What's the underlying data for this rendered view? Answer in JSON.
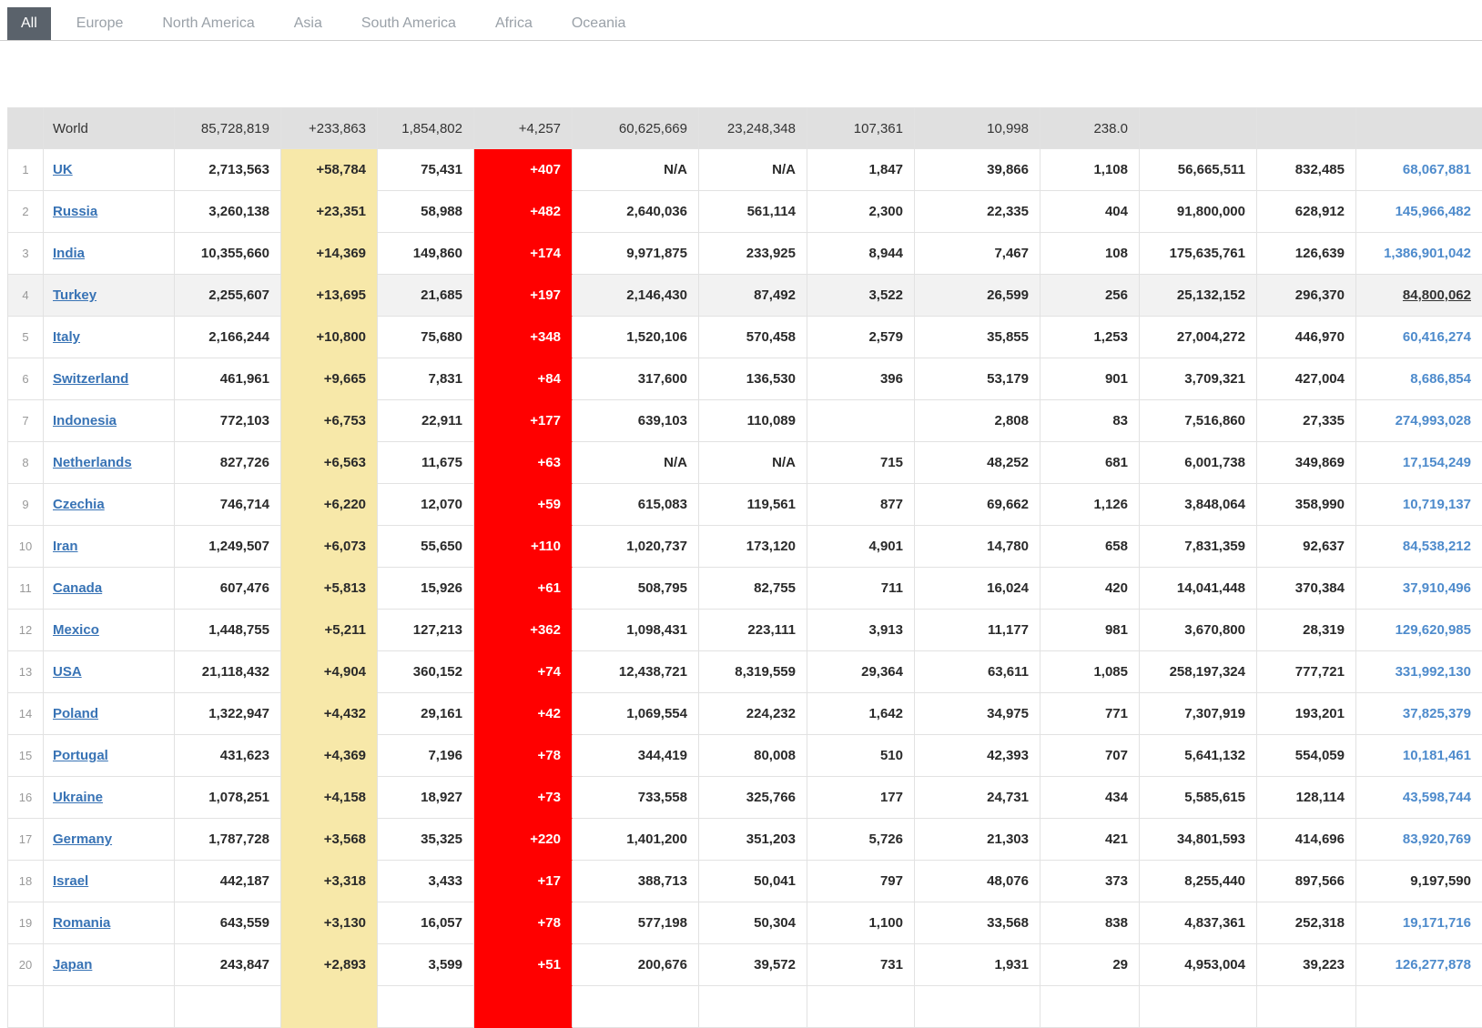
{
  "tabs": [
    {
      "label": "All",
      "active": true
    },
    {
      "label": "Europe",
      "active": false
    },
    {
      "label": "North America",
      "active": false
    },
    {
      "label": "Asia",
      "active": false
    },
    {
      "label": "South America",
      "active": false
    },
    {
      "label": "Africa",
      "active": false
    },
    {
      "label": "Oceania",
      "active": false
    }
  ],
  "colors": {
    "new_cases_highlight": "#F7E8A9",
    "new_deaths_highlight": "#FF0000",
    "country_link_blue": "#3873B5",
    "population_link_blue": "#4E8BCC",
    "active_tab_background": "#5A626B",
    "summary_row_background": "#E0E0E0",
    "highlighted_row_background": "#F2F2F2"
  },
  "summary": {
    "label": "World",
    "total_cases": "85,728,819",
    "new_cases": "+233,863",
    "total_deaths": "1,854,802",
    "new_deaths": "+4,257",
    "total_recovered": "60,625,669",
    "active_cases": "23,248,348",
    "serious_critical": "107,361",
    "cases_per_1m": "10,998",
    "deaths_per_1m": "238.0",
    "total_tests": "",
    "tests_per_1m": "",
    "population": ""
  },
  "rows": [
    {
      "rank": "1",
      "country": "UK",
      "total_cases": "2,713,563",
      "new_cases": "+58,784",
      "total_deaths": "75,431",
      "new_deaths": "+407",
      "total_recovered": "N/A",
      "active_cases": "N/A",
      "serious_critical": "1,847",
      "cases_per_1m": "39,866",
      "deaths_per_1m": "1,108",
      "total_tests": "56,665,511",
      "tests_per_1m": "832,485",
      "population": "68,067,881",
      "population_style": "link",
      "highlighted": false
    },
    {
      "rank": "2",
      "country": "Russia",
      "total_cases": "3,260,138",
      "new_cases": "+23,351",
      "total_deaths": "58,988",
      "new_deaths": "+482",
      "total_recovered": "2,640,036",
      "active_cases": "561,114",
      "serious_critical": "2,300",
      "cases_per_1m": "22,335",
      "deaths_per_1m": "404",
      "total_tests": "91,800,000",
      "tests_per_1m": "628,912",
      "population": "145,966,482",
      "population_style": "link",
      "highlighted": false
    },
    {
      "rank": "3",
      "country": "India",
      "total_cases": "10,355,660",
      "new_cases": "+14,369",
      "total_deaths": "149,860",
      "new_deaths": "+174",
      "total_recovered": "9,971,875",
      "active_cases": "233,925",
      "serious_critical": "8,944",
      "cases_per_1m": "7,467",
      "deaths_per_1m": "108",
      "total_tests": "175,635,761",
      "tests_per_1m": "126,639",
      "population": "1,386,901,042",
      "population_style": "link",
      "highlighted": false
    },
    {
      "rank": "4",
      "country": "Turkey",
      "total_cases": "2,255,607",
      "new_cases": "+13,695",
      "total_deaths": "21,685",
      "new_deaths": "+197",
      "total_recovered": "2,146,430",
      "active_cases": "87,492",
      "serious_critical": "3,522",
      "cases_per_1m": "26,599",
      "deaths_per_1m": "256",
      "total_tests": "25,132,152",
      "tests_per_1m": "296,370",
      "population": "84,800,062",
      "population_style": "hover",
      "highlighted": true
    },
    {
      "rank": "5",
      "country": "Italy",
      "total_cases": "2,166,244",
      "new_cases": "+10,800",
      "total_deaths": "75,680",
      "new_deaths": "+348",
      "total_recovered": "1,520,106",
      "active_cases": "570,458",
      "serious_critical": "2,579",
      "cases_per_1m": "35,855",
      "deaths_per_1m": "1,253",
      "total_tests": "27,004,272",
      "tests_per_1m": "446,970",
      "population": "60,416,274",
      "population_style": "link",
      "highlighted": false
    },
    {
      "rank": "6",
      "country": "Switzerland",
      "total_cases": "461,961",
      "new_cases": "+9,665",
      "total_deaths": "7,831",
      "new_deaths": "+84",
      "total_recovered": "317,600",
      "active_cases": "136,530",
      "serious_critical": "396",
      "cases_per_1m": "53,179",
      "deaths_per_1m": "901",
      "total_tests": "3,709,321",
      "tests_per_1m": "427,004",
      "population": "8,686,854",
      "population_style": "link",
      "highlighted": false
    },
    {
      "rank": "7",
      "country": "Indonesia",
      "total_cases": "772,103",
      "new_cases": "+6,753",
      "total_deaths": "22,911",
      "new_deaths": "+177",
      "total_recovered": "639,103",
      "active_cases": "110,089",
      "serious_critical": "",
      "cases_per_1m": "2,808",
      "deaths_per_1m": "83",
      "total_tests": "7,516,860",
      "tests_per_1m": "27,335",
      "population": "274,993,028",
      "population_style": "link",
      "highlighted": false
    },
    {
      "rank": "8",
      "country": "Netherlands",
      "total_cases": "827,726",
      "new_cases": "+6,563",
      "total_deaths": "11,675",
      "new_deaths": "+63",
      "total_recovered": "N/A",
      "active_cases": "N/A",
      "serious_critical": "715",
      "cases_per_1m": "48,252",
      "deaths_per_1m": "681",
      "total_tests": "6,001,738",
      "tests_per_1m": "349,869",
      "population": "17,154,249",
      "population_style": "link",
      "highlighted": false
    },
    {
      "rank": "9",
      "country": "Czechia",
      "total_cases": "746,714",
      "new_cases": "+6,220",
      "total_deaths": "12,070",
      "new_deaths": "+59",
      "total_recovered": "615,083",
      "active_cases": "119,561",
      "serious_critical": "877",
      "cases_per_1m": "69,662",
      "deaths_per_1m": "1,126",
      "total_tests": "3,848,064",
      "tests_per_1m": "358,990",
      "population": "10,719,137",
      "population_style": "link",
      "highlighted": false
    },
    {
      "rank": "10",
      "country": "Iran",
      "total_cases": "1,249,507",
      "new_cases": "+6,073",
      "total_deaths": "55,650",
      "new_deaths": "+110",
      "total_recovered": "1,020,737",
      "active_cases": "173,120",
      "serious_critical": "4,901",
      "cases_per_1m": "14,780",
      "deaths_per_1m": "658",
      "total_tests": "7,831,359",
      "tests_per_1m": "92,637",
      "population": "84,538,212",
      "population_style": "link",
      "highlighted": false
    },
    {
      "rank": "11",
      "country": "Canada",
      "total_cases": "607,476",
      "new_cases": "+5,813",
      "total_deaths": "15,926",
      "new_deaths": "+61",
      "total_recovered": "508,795",
      "active_cases": "82,755",
      "serious_critical": "711",
      "cases_per_1m": "16,024",
      "deaths_per_1m": "420",
      "total_tests": "14,041,448",
      "tests_per_1m": "370,384",
      "population": "37,910,496",
      "population_style": "link",
      "highlighted": false
    },
    {
      "rank": "12",
      "country": "Mexico",
      "total_cases": "1,448,755",
      "new_cases": "+5,211",
      "total_deaths": "127,213",
      "new_deaths": "+362",
      "total_recovered": "1,098,431",
      "active_cases": "223,111",
      "serious_critical": "3,913",
      "cases_per_1m": "11,177",
      "deaths_per_1m": "981",
      "total_tests": "3,670,800",
      "tests_per_1m": "28,319",
      "population": "129,620,985",
      "population_style": "link",
      "highlighted": false
    },
    {
      "rank": "13",
      "country": "USA",
      "total_cases": "21,118,432",
      "new_cases": "+4,904",
      "total_deaths": "360,152",
      "new_deaths": "+74",
      "total_recovered": "12,438,721",
      "active_cases": "8,319,559",
      "serious_critical": "29,364",
      "cases_per_1m": "63,611",
      "deaths_per_1m": "1,085",
      "total_tests": "258,197,324",
      "tests_per_1m": "777,721",
      "population": "331,992,130",
      "population_style": "link",
      "highlighted": false
    },
    {
      "rank": "14",
      "country": "Poland",
      "total_cases": "1,322,947",
      "new_cases": "+4,432",
      "total_deaths": "29,161",
      "new_deaths": "+42",
      "total_recovered": "1,069,554",
      "active_cases": "224,232",
      "serious_critical": "1,642",
      "cases_per_1m": "34,975",
      "deaths_per_1m": "771",
      "total_tests": "7,307,919",
      "tests_per_1m": "193,201",
      "population": "37,825,379",
      "population_style": "link",
      "highlighted": false
    },
    {
      "rank": "15",
      "country": "Portugal",
      "total_cases": "431,623",
      "new_cases": "+4,369",
      "total_deaths": "7,196",
      "new_deaths": "+78",
      "total_recovered": "344,419",
      "active_cases": "80,008",
      "serious_critical": "510",
      "cases_per_1m": "42,393",
      "deaths_per_1m": "707",
      "total_tests": "5,641,132",
      "tests_per_1m": "554,059",
      "population": "10,181,461",
      "population_style": "link",
      "highlighted": false
    },
    {
      "rank": "16",
      "country": "Ukraine",
      "total_cases": "1,078,251",
      "new_cases": "+4,158",
      "total_deaths": "18,927",
      "new_deaths": "+73",
      "total_recovered": "733,558",
      "active_cases": "325,766",
      "serious_critical": "177",
      "cases_per_1m": "24,731",
      "deaths_per_1m": "434",
      "total_tests": "5,585,615",
      "tests_per_1m": "128,114",
      "population": "43,598,744",
      "population_style": "link",
      "highlighted": false
    },
    {
      "rank": "17",
      "country": "Germany",
      "total_cases": "1,787,728",
      "new_cases": "+3,568",
      "total_deaths": "35,325",
      "new_deaths": "+220",
      "total_recovered": "1,401,200",
      "active_cases": "351,203",
      "serious_critical": "5,726",
      "cases_per_1m": "21,303",
      "deaths_per_1m": "421",
      "total_tests": "34,801,593",
      "tests_per_1m": "414,696",
      "population": "83,920,769",
      "population_style": "link",
      "highlighted": false
    },
    {
      "rank": "18",
      "country": "Israel",
      "total_cases": "442,187",
      "new_cases": "+3,318",
      "total_deaths": "3,433",
      "new_deaths": "+17",
      "total_recovered": "388,713",
      "active_cases": "50,041",
      "serious_critical": "797",
      "cases_per_1m": "48,076",
      "deaths_per_1m": "373",
      "total_tests": "8,255,440",
      "tests_per_1m": "897,566",
      "population": "9,197,590",
      "population_style": "plain",
      "highlighted": false
    },
    {
      "rank": "19",
      "country": "Romania",
      "total_cases": "643,559",
      "new_cases": "+3,130",
      "total_deaths": "16,057",
      "new_deaths": "+78",
      "total_recovered": "577,198",
      "active_cases": "50,304",
      "serious_critical": "1,100",
      "cases_per_1m": "33,568",
      "deaths_per_1m": "838",
      "total_tests": "4,837,361",
      "tests_per_1m": "252,318",
      "population": "19,171,716",
      "population_style": "link",
      "highlighted": false
    },
    {
      "rank": "20",
      "country": "Japan",
      "total_cases": "243,847",
      "new_cases": "+2,893",
      "total_deaths": "3,599",
      "new_deaths": "+51",
      "total_recovered": "200,676",
      "active_cases": "39,572",
      "serious_critical": "731",
      "cases_per_1m": "1,931",
      "deaths_per_1m": "29",
      "total_tests": "4,953,004",
      "tests_per_1m": "39,223",
      "population": "126,277,878",
      "population_style": "link",
      "highlighted": false
    }
  ]
}
